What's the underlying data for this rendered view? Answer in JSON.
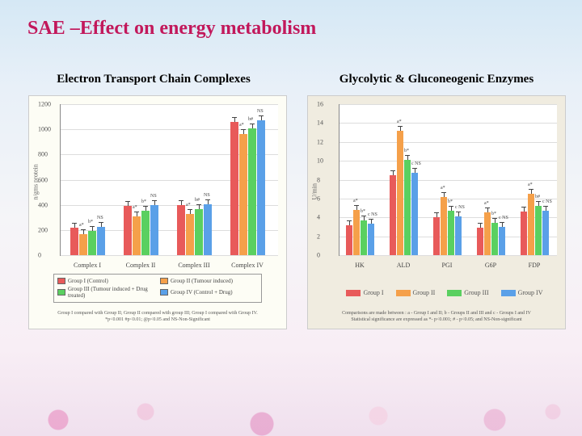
{
  "title": "SAE –Effect on energy metabolism",
  "subtitles": {
    "left": "Electron Transport Chain Complexes",
    "right": "Glycolytic & Gluconeogenic Enzymes"
  },
  "colors": {
    "title": "#c2185b",
    "bg_gradient": [
      "#d5e8f5",
      "#f0e0ee"
    ],
    "group_colors": [
      "#e85a5a",
      "#f5a04a",
      "#5ad060",
      "#5aa0e8"
    ],
    "panel_bg_left": "#fdfdf5",
    "panel_bg_right": "#f0ece0",
    "grid": "#ddd",
    "axis": "#888"
  },
  "left_chart": {
    "type": "grouped-bar",
    "y_axis_label": "n/gms protein",
    "ylim": [
      0,
      1200
    ],
    "yticks": [
      0,
      200,
      400,
      600,
      800,
      1000,
      1200
    ],
    "categories": [
      "Complex I",
      "Complex II",
      "Complex III",
      "Complex IV"
    ],
    "series": [
      {
        "name": "Group I (Control)",
        "color": "#e85a5a"
      },
      {
        "name": "Group II (Tumour induced)",
        "color": "#f5a04a"
      },
      {
        "name": "Group III (Tumour induced + Drug treated)",
        "color": "#5ad060"
      },
      {
        "name": "Group IV (Control + Drug)",
        "color": "#5aa0e8"
      }
    ],
    "values": [
      [
        220,
        170,
        190,
        225
      ],
      [
        390,
        310,
        350,
        395
      ],
      [
        400,
        330,
        365,
        405
      ],
      [
        1060,
        960,
        1010,
        1070
      ]
    ],
    "annotations": [
      [
        "",
        "a*",
        "b*",
        "NS"
      ],
      [
        "",
        "a*",
        "b*",
        "NS"
      ],
      [
        "",
        "a*",
        "b#",
        "NS"
      ],
      [
        "",
        "a*",
        "b#",
        "NS"
      ]
    ],
    "footnote": "Group I compared with Group II; Group II compared with group III; Group I compared with Group IV. *p<0.001 #p<0.01;\n@p<0.05 and NS-Non-Significant"
  },
  "right_chart": {
    "type": "grouped-bar",
    "y_axis_label": "U/min",
    "ylim": [
      0,
      16
    ],
    "yticks": [
      0,
      2,
      4,
      6,
      8,
      10,
      12,
      14,
      16
    ],
    "categories": [
      "HK",
      "ALD",
      "PGI",
      "G6P",
      "FDP"
    ],
    "series": [
      {
        "name": "Group I",
        "color": "#e85a5a"
      },
      {
        "name": "Group II",
        "color": "#f5a04a"
      },
      {
        "name": "Group III",
        "color": "#5ad060"
      },
      {
        "name": "Group IV",
        "color": "#5aa0e8"
      }
    ],
    "values": [
      [
        3.2,
        4.8,
        3.7,
        3.3
      ],
      [
        8.5,
        13.2,
        10.1,
        8.7
      ],
      [
        4.0,
        6.2,
        4.7,
        4.1
      ],
      [
        2.9,
        4.5,
        3.4,
        3.0
      ],
      [
        4.6,
        6.5,
        5.2,
        4.7
      ]
    ],
    "annotations": [
      [
        "",
        "a*",
        "b*",
        "c NS"
      ],
      [
        "",
        "a*",
        "b*",
        "c NS"
      ],
      [
        "",
        "a*",
        "b*",
        "c NS"
      ],
      [
        "",
        "a*",
        "b*",
        "c NS"
      ],
      [
        "",
        "a*",
        "b#",
        "c NS"
      ]
    ],
    "footnote": "Comparisons are made between : a - Group I and II; b - Groups II and III and c - Groups I and IV\nStatistical significance are expressed as *- p<0.001; # - p<0.05; and NS-Non-significant"
  }
}
